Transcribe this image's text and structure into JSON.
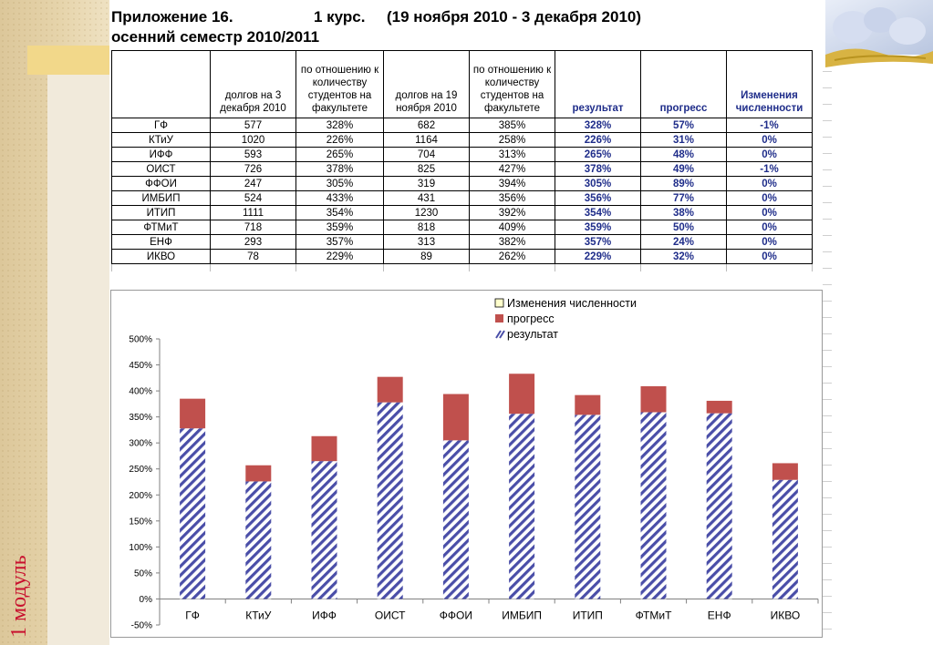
{
  "header": {
    "title_left": "Приложение 16.",
    "title_course": "1 курс.",
    "title_period": "(19 ноября 2010  -  3 декабря 2010)",
    "subtitle": "осенний семестр 2010/2011"
  },
  "side_label": "1 модуль",
  "table": {
    "headers": [
      "",
      "долгов на 3 декабря 2010",
      "по отношению к количеству студентов на факультете",
      "долгов на 19 ноября 2010",
      "по отношению к количеству студентов на факультете",
      "результат",
      "прогресс",
      "Изменения численности"
    ],
    "rows": [
      [
        "ГФ",
        "577",
        "328%",
        "682",
        "385%",
        "328%",
        "57%",
        "-1%"
      ],
      [
        "КТиУ",
        "1020",
        "226%",
        "1164",
        "258%",
        "226%",
        "31%",
        "0%"
      ],
      [
        "ИФФ",
        "593",
        "265%",
        "704",
        "313%",
        "265%",
        "48%",
        "0%"
      ],
      [
        "ОИСТ",
        "726",
        "378%",
        "825",
        "427%",
        "378%",
        "49%",
        "-1%"
      ],
      [
        "ФФОИ",
        "247",
        "305%",
        "319",
        "394%",
        "305%",
        "89%",
        "0%"
      ],
      [
        "ИМБИП",
        "524",
        "433%",
        "431",
        "356%",
        "356%",
        "77%",
        "0%"
      ],
      [
        "ИТИП",
        "1111",
        "354%",
        "1230",
        "392%",
        "354%",
        "38%",
        "0%"
      ],
      [
        "ФТМиТ",
        "718",
        "359%",
        "818",
        "409%",
        "359%",
        "50%",
        "0%"
      ],
      [
        "ЕНФ",
        "293",
        "357%",
        "313",
        "382%",
        "357%",
        "24%",
        "0%"
      ],
      [
        "ИКВО",
        "78",
        "229%",
        "89",
        "262%",
        "229%",
        "32%",
        "0%"
      ]
    ]
  },
  "chart_data": {
    "type": "bar",
    "stacked": true,
    "categories": [
      "ГФ",
      "КТиУ",
      "ИФФ",
      "ОИСТ",
      "ФФОИ",
      "ИМБИП",
      "ИТИП",
      "ФТМиТ",
      "ЕНФ",
      "ИКВО"
    ],
    "series": [
      {
        "name": "результат",
        "values": [
          328,
          226,
          265,
          378,
          305,
          356,
          354,
          359,
          357,
          229
        ],
        "color": "#4a4ea8",
        "pattern": "diagonal-hatch"
      },
      {
        "name": "прогресс",
        "values": [
          57,
          31,
          48,
          49,
          89,
          77,
          38,
          50,
          24,
          32
        ],
        "color": "#c0504d"
      },
      {
        "name": "Изменения численности",
        "values": [
          -1,
          0,
          0,
          -1,
          0,
          0,
          0,
          0,
          0,
          0
        ],
        "color": "#ffffcc"
      }
    ],
    "legend_order": [
      "Изменения численности",
      "прогресс",
      "результат"
    ],
    "y_ticks": [
      "-50%",
      "0%",
      "50%",
      "100%",
      "150%",
      "200%",
      "250%",
      "300%",
      "350%",
      "400%",
      "450%",
      "500%"
    ],
    "ylim": [
      -50,
      500
    ],
    "legend_position": "top-right",
    "grid": false
  }
}
